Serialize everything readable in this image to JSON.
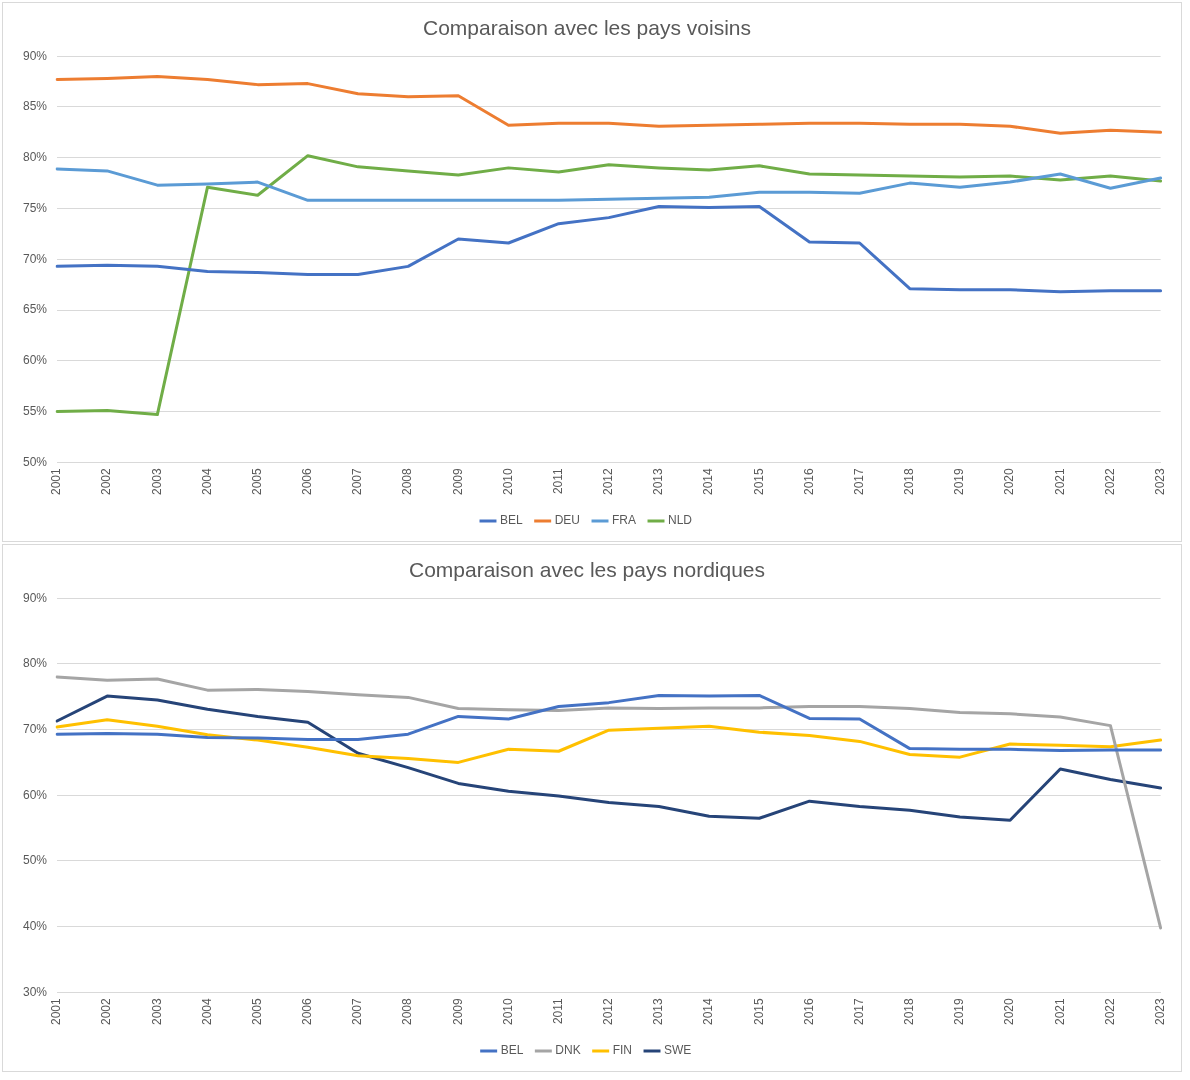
{
  "chart_data": [
    {
      "type": "line",
      "title": "Comparaison avec les pays voisins",
      "categories": [
        "2001",
        "2002",
        "2003",
        "2004",
        "2005",
        "2006",
        "2007",
        "2008",
        "2009",
        "2010",
        "2011",
        "2012",
        "2013",
        "2014",
        "2015",
        "2016",
        "2017",
        "2018",
        "2019",
        "2020",
        "2021",
        "2022",
        "2023"
      ],
      "series": [
        {
          "name": "BEL",
          "color": "#4472c4",
          "values": [
            69.3,
            69.4,
            69.3,
            68.8,
            68.7,
            68.5,
            68.5,
            69.3,
            72.0,
            71.6,
            73.5,
            74.1,
            75.2,
            75.1,
            75.2,
            71.7,
            71.6,
            67.1,
            67.0,
            67.0,
            66.8,
            66.9,
            66.9
          ]
        },
        {
          "name": "DEU",
          "color": "#ed7d31",
          "values": [
            87.7,
            87.8,
            88.0,
            87.7,
            87.2,
            87.3,
            86.3,
            86.0,
            86.1,
            83.2,
            83.4,
            83.4,
            83.1,
            83.2,
            83.3,
            83.4,
            83.4,
            83.3,
            83.3,
            83.1,
            82.4,
            82.7,
            82.5
          ]
        },
        {
          "name": "FRA",
          "color": "#5b9bd5",
          "values": [
            78.9,
            78.7,
            77.3,
            77.4,
            77.6,
            75.8,
            75.8,
            75.8,
            75.8,
            75.8,
            75.8,
            75.9,
            76.0,
            76.1,
            76.6,
            76.6,
            76.5,
            77.5,
            77.1,
            77.6,
            78.4,
            77.0,
            78.0
          ]
        },
        {
          "name": "NLD",
          "color": "#70ad47",
          "values": [
            55.0,
            55.1,
            54.7,
            77.1,
            76.3,
            80.2,
            79.1,
            78.7,
            78.3,
            79.0,
            78.6,
            79.3,
            79.0,
            78.8,
            79.2,
            78.4,
            78.3,
            78.2,
            78.1,
            78.2,
            77.8,
            78.2,
            77.7
          ]
        }
      ],
      "ylim": [
        50,
        90
      ],
      "yticks": [
        {
          "value": 50,
          "label": "50%"
        },
        {
          "value": 55,
          "label": "55%"
        },
        {
          "value": 60,
          "label": "60%"
        },
        {
          "value": 65,
          "label": "65%"
        },
        {
          "value": 70,
          "label": "70%"
        },
        {
          "value": 75,
          "label": "75%"
        },
        {
          "value": 80,
          "label": "80%"
        },
        {
          "value": 85,
          "label": "85%"
        },
        {
          "value": 90,
          "label": "90%"
        }
      ],
      "grid": "y",
      "legend": "bottom",
      "marker": "none",
      "line_style": "solid"
    },
    {
      "type": "line",
      "title": "Comparaison avec les pays nordiques",
      "categories": [
        "2001",
        "2002",
        "2003",
        "2004",
        "2005",
        "2006",
        "2007",
        "2008",
        "2009",
        "2010",
        "2011",
        "2012",
        "2013",
        "2014",
        "2015",
        "2016",
        "2017",
        "2018",
        "2019",
        "2020",
        "2021",
        "2022",
        "2023"
      ],
      "series": [
        {
          "name": "BEL",
          "color": "#4472c4",
          "values": [
            69.3,
            69.4,
            69.3,
            68.8,
            68.7,
            68.5,
            68.5,
            69.3,
            72.0,
            71.6,
            73.5,
            74.1,
            75.2,
            75.1,
            75.2,
            71.7,
            71.6,
            67.1,
            67.0,
            67.0,
            66.8,
            66.9,
            66.9
          ]
        },
        {
          "name": "DNK",
          "color": "#a5a5a5",
          "values": [
            78.0,
            77.5,
            77.7,
            76.0,
            76.1,
            75.8,
            75.3,
            74.9,
            73.2,
            73.0,
            72.9,
            73.3,
            73.2,
            73.3,
            73.3,
            73.5,
            73.5,
            73.2,
            72.6,
            72.4,
            71.9,
            70.6,
            39.8
          ]
        },
        {
          "name": "FIN",
          "color": "#ffc000",
          "values": [
            70.4,
            71.5,
            70.5,
            69.2,
            68.4,
            67.3,
            66.0,
            65.6,
            65.0,
            67.0,
            66.7,
            69.9,
            70.2,
            70.5,
            69.6,
            69.1,
            68.2,
            66.2,
            65.8,
            67.8,
            67.6,
            67.4,
            68.4
          ]
        },
        {
          "name": "SWE",
          "color": "#264478",
          "values": [
            71.3,
            75.1,
            74.5,
            73.1,
            72.0,
            71.1,
            66.4,
            64.2,
            61.8,
            60.6,
            59.9,
            58.9,
            58.3,
            56.8,
            56.5,
            59.1,
            58.3,
            57.7,
            56.7,
            56.2,
            64.0,
            62.4,
            61.1
          ]
        }
      ],
      "ylim": [
        30,
        90
      ],
      "yticks": [
        {
          "value": 30,
          "label": "30%"
        },
        {
          "value": 40,
          "label": "40%"
        },
        {
          "value": 50,
          "label": "50%"
        },
        {
          "value": 60,
          "label": "60%"
        },
        {
          "value": 70,
          "label": "70%"
        },
        {
          "value": 80,
          "label": "80%"
        },
        {
          "value": 90,
          "label": "90%"
        }
      ],
      "grid": "y",
      "legend": "bottom",
      "marker": "none",
      "line_style": "solid"
    }
  ]
}
